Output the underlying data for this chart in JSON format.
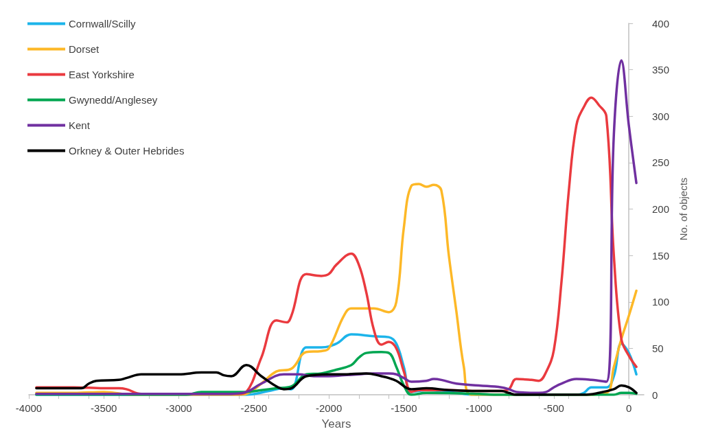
{
  "chart_data": {
    "type": "line",
    "xlabel": "Years",
    "ylabel": "No. of objects",
    "xlim": [
      -4000,
      100
    ],
    "xticks": [
      -4000,
      -3500,
      -3000,
      -2500,
      -2000,
      -1500,
      -1000,
      -500,
      0
    ],
    "ylim": [
      0,
      400
    ],
    "yticks": [
      0,
      50,
      100,
      150,
      200,
      250,
      300,
      350,
      400
    ],
    "grid": false,
    "legend": "top left",
    "marker": "none",
    "line_style": "solid",
    "series": [
      {
        "name": "Cornwall/Scilly",
        "color": "#1cb4ea",
        "x": [
          -3950,
          -2600,
          -2550,
          -2400,
          -2300,
          -2250,
          -2150,
          -2050,
          -1950,
          -1850,
          -1700,
          -1600,
          -1550,
          -1500,
          -1450,
          -1350,
          -1200,
          -1100,
          -1050,
          -350,
          -300,
          -250,
          -150,
          -100,
          -50,
          0,
          50
        ],
        "values": [
          0,
          0,
          0,
          4,
          7,
          6,
          51,
          51,
          55,
          65,
          63,
          62,
          55,
          30,
          3,
          5,
          3,
          1,
          0,
          0,
          2,
          8,
          8,
          20,
          55,
          45,
          22
        ]
      },
      {
        "name": "Dorset",
        "color": "#fdb827",
        "x": [
          -3950,
          -3700,
          -3500,
          -3300,
          -2600,
          -2550,
          -2450,
          -2350,
          -2250,
          -2150,
          -2050,
          -2000,
          -1900,
          -1850,
          -1700,
          -1600,
          -1550,
          -1500,
          -1450,
          -1400,
          -1350,
          -1300,
          -1250,
          -1200,
          -1150,
          -1100,
          -1050,
          -300,
          -150,
          -100,
          -50,
          0,
          50
        ],
        "values": [
          2,
          2,
          3,
          0,
          0,
          1,
          12,
          25,
          28,
          46,
          47,
          50,
          85,
          93,
          93,
          89,
          100,
          180,
          225,
          227,
          224,
          226,
          220,
          150,
          90,
          30,
          0,
          0,
          2,
          30,
          60,
          85,
          112
        ]
      },
      {
        "name": "East Yorkshire",
        "color": "#ea3a3f",
        "x": [
          -3950,
          -3700,
          -3500,
          -3400,
          -3350,
          -3250,
          -2600,
          -2550,
          -2450,
          -2350,
          -2280,
          -2250,
          -2150,
          -2050,
          -2000,
          -1950,
          -1850,
          -1800,
          -1750,
          -1700,
          -1650,
          -1600,
          -1550,
          -1500,
          -1450,
          -1400,
          -1200,
          -1000,
          -850,
          -800,
          -750,
          -650,
          -600,
          -550,
          -500,
          -450,
          -400,
          -350,
          -300,
          -250,
          -200,
          -150,
          -100,
          -50,
          0,
          50
        ],
        "values": [
          8,
          8,
          7,
          7,
          6,
          1,
          1,
          3,
          40,
          80,
          78,
          85,
          130,
          128,
          130,
          140,
          152,
          140,
          110,
          70,
          54,
          57,
          50,
          25,
          3,
          5,
          5,
          4,
          4,
          6,
          17,
          16,
          15,
          25,
          48,
          120,
          220,
          290,
          310,
          320,
          312,
          300,
          150,
          60,
          42,
          30
        ]
      },
      {
        "name": "Gwynedd/Anglesey",
        "color": "#00a651",
        "x": [
          -3950,
          -2950,
          -2850,
          -2550,
          -2450,
          -2350,
          -2250,
          -2150,
          -2050,
          -1950,
          -1850,
          -1800,
          -1750,
          -1650,
          -1600,
          -1550,
          -1500,
          -1450,
          -1350,
          -1000,
          -900,
          -100,
          -50,
          0,
          50
        ],
        "values": [
          0,
          0,
          3,
          3,
          5,
          7,
          9,
          22,
          23,
          27,
          32,
          40,
          45,
          46,
          45,
          30,
          10,
          0,
          2,
          1,
          0,
          0,
          2,
          2,
          1
        ]
      },
      {
        "name": "Kent",
        "color": "#7030a0",
        "x": [
          -3950,
          -2650,
          -2550,
          -2450,
          -2300,
          -2200,
          -2100,
          -2000,
          -1900,
          -1800,
          -1700,
          -1600,
          -1550,
          -1500,
          -1450,
          -1350,
          -1300,
          -1250,
          -1150,
          -1000,
          -850,
          -800,
          -750,
          -600,
          -550,
          -500,
          -450,
          -350,
          -250,
          -150,
          -100,
          -50,
          0,
          50
        ],
        "values": [
          1,
          1,
          3,
          12,
          22,
          22,
          20,
          20,
          21,
          22,
          23,
          23,
          22,
          18,
          14,
          15,
          17,
          16,
          12,
          10,
          8,
          6,
          3,
          2,
          3,
          8,
          12,
          17,
          16,
          14,
          280,
          360,
          290,
          228
        ]
      },
      {
        "name": "Orkney & Outer Hebrides",
        "color": "#000000",
        "x": [
          -3950,
          -3700,
          -3650,
          -3600,
          -3550,
          -3400,
          -3350,
          -3250,
          -3000,
          -2850,
          -2750,
          -2700,
          -2650,
          -2550,
          -2450,
          -2350,
          -2300,
          -2250,
          -2150,
          -2000,
          -1900,
          -1750,
          -1650,
          -1600,
          -1550,
          -1450,
          -1350,
          -1200,
          -1000,
          -850,
          -800,
          -750,
          -300,
          -200,
          -100,
          -50,
          0,
          50
        ],
        "values": [
          7,
          7,
          7,
          12,
          15,
          16,
          18,
          22,
          22,
          24,
          24,
          21,
          20,
          32,
          20,
          9,
          6,
          7,
          20,
          22,
          22,
          23,
          20,
          18,
          15,
          6,
          7,
          5,
          4,
          4,
          2,
          0,
          0,
          2,
          6,
          10,
          8,
          2
        ]
      }
    ]
  }
}
